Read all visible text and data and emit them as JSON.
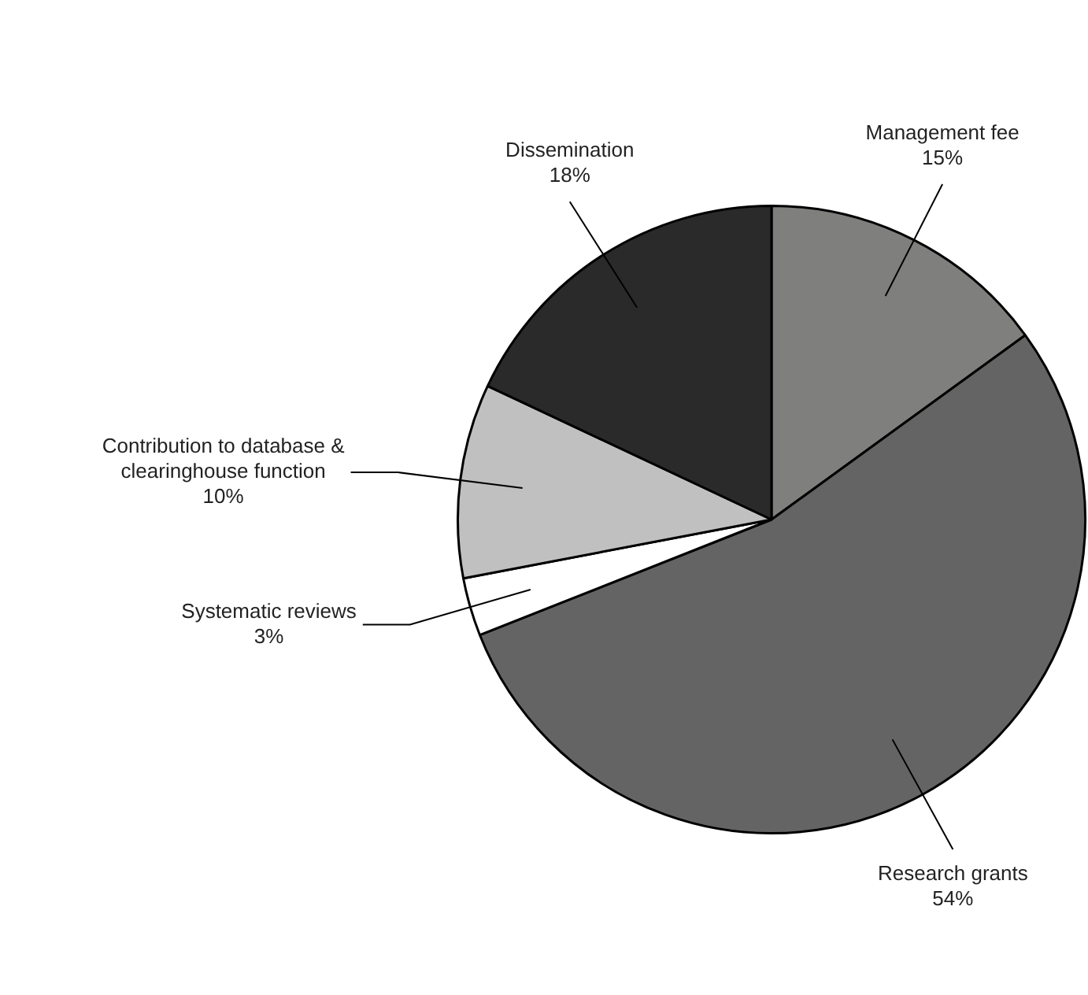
{
  "chart_data": {
    "type": "pie",
    "categories": [
      "Management fee",
      "Research grants",
      "Systematic reviews",
      "Contribution to database & clearinghouse function",
      "Dissemination"
    ],
    "values": [
      15,
      54,
      3,
      10,
      18
    ],
    "colors": [
      "#7f807e",
      "#646464",
      "#ffffff",
      "#c0c0c0",
      "#2a2a2a"
    ],
    "value_labels": [
      "15%",
      "54%",
      "3%",
      "10%",
      "18%"
    ],
    "legend": false
  }
}
